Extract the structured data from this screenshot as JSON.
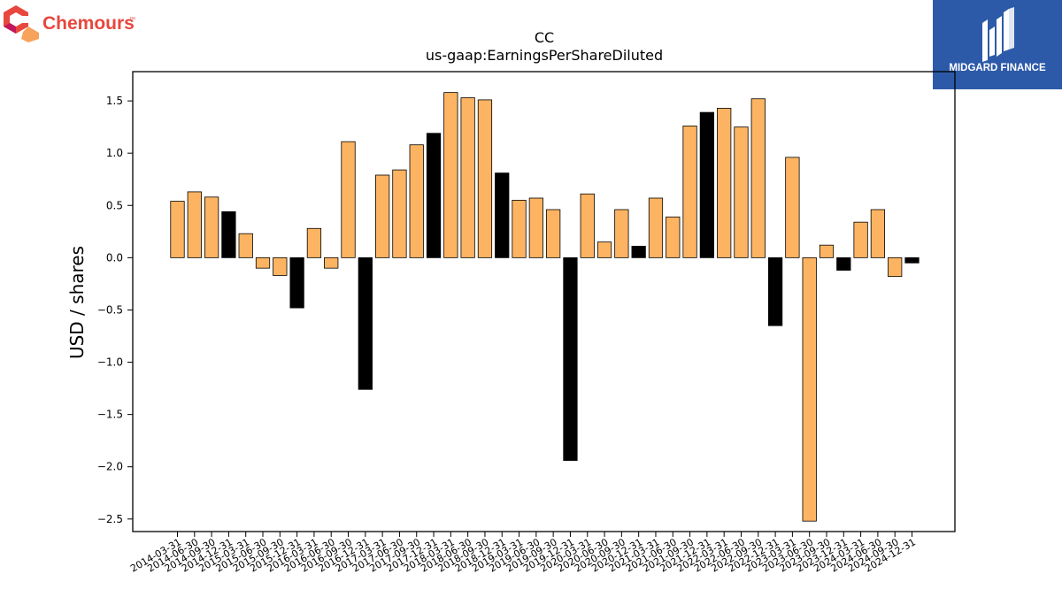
{
  "brand_left": {
    "name": "Chemours",
    "tm": "™",
    "color": "#e8473e"
  },
  "brand_right": {
    "name": "MIDGARD FINANCE",
    "bg": "#2d5aa8"
  },
  "colors": {
    "positive": "#fdb462",
    "negative": "#000000",
    "edge": "#000000"
  },
  "chart_data": {
    "type": "bar",
    "title": "CC",
    "subtitle": "us-gaap:EarningsPerShareDiluted",
    "xlabel": "",
    "ylabel": "USD / shares",
    "ylim": [
      -2.62,
      1.78
    ],
    "yticks": [
      1.5,
      1.0,
      0.5,
      0.0,
      -0.5,
      -1.0,
      -1.5,
      -2.0,
      -2.5
    ],
    "ytick_labels": [
      "1.5",
      "1.0",
      "0.5",
      "0.0",
      "−0.5",
      "−1.0",
      "−1.5",
      "−2.0",
      "−2.5"
    ],
    "grid": false,
    "categories": [
      "2014-03-31",
      "2014-06-30",
      "2014-09-30",
      "2014-12-31",
      "2015-03-31",
      "2015-06-30",
      "2015-09-30",
      "2015-12-31",
      "2016-03-31",
      "2016-06-30",
      "2016-09-30",
      "2016-12-31",
      "2017-03-31",
      "2017-06-30",
      "2017-09-30",
      "2017-12-31",
      "2018-03-31",
      "2018-06-30",
      "2018-09-30",
      "2018-12-31",
      "2019-03-31",
      "2019-06-30",
      "2019-09-30",
      "2019-12-31",
      "2020-03-31",
      "2020-06-30",
      "2020-09-30",
      "2020-12-31",
      "2021-03-31",
      "2021-06-30",
      "2021-09-30",
      "2021-12-31",
      "2022-03-31",
      "2022-06-30",
      "2022-09-30",
      "2022-12-31",
      "2023-03-31",
      "2023-06-30",
      "2023-09-30",
      "2023-12-31",
      "2024-03-31",
      "2024-06-30",
      "2024-09-30",
      "2024-12-31"
    ],
    "values": [
      0.54,
      0.63,
      0.58,
      0.44,
      0.23,
      -0.1,
      -0.17,
      -0.48,
      0.28,
      -0.1,
      1.11,
      -1.26,
      0.79,
      0.84,
      1.08,
      1.19,
      1.58,
      1.53,
      1.51,
      0.81,
      0.55,
      0.57,
      0.46,
      -1.94,
      0.61,
      0.15,
      0.46,
      0.11,
      0.57,
      0.39,
      1.26,
      1.39,
      1.43,
      1.25,
      1.52,
      -0.65,
      0.96,
      -2.52,
      0.12,
      -0.12,
      0.34,
      0.46,
      -0.18,
      -0.05
    ],
    "highlight_quarter": "12-31"
  }
}
